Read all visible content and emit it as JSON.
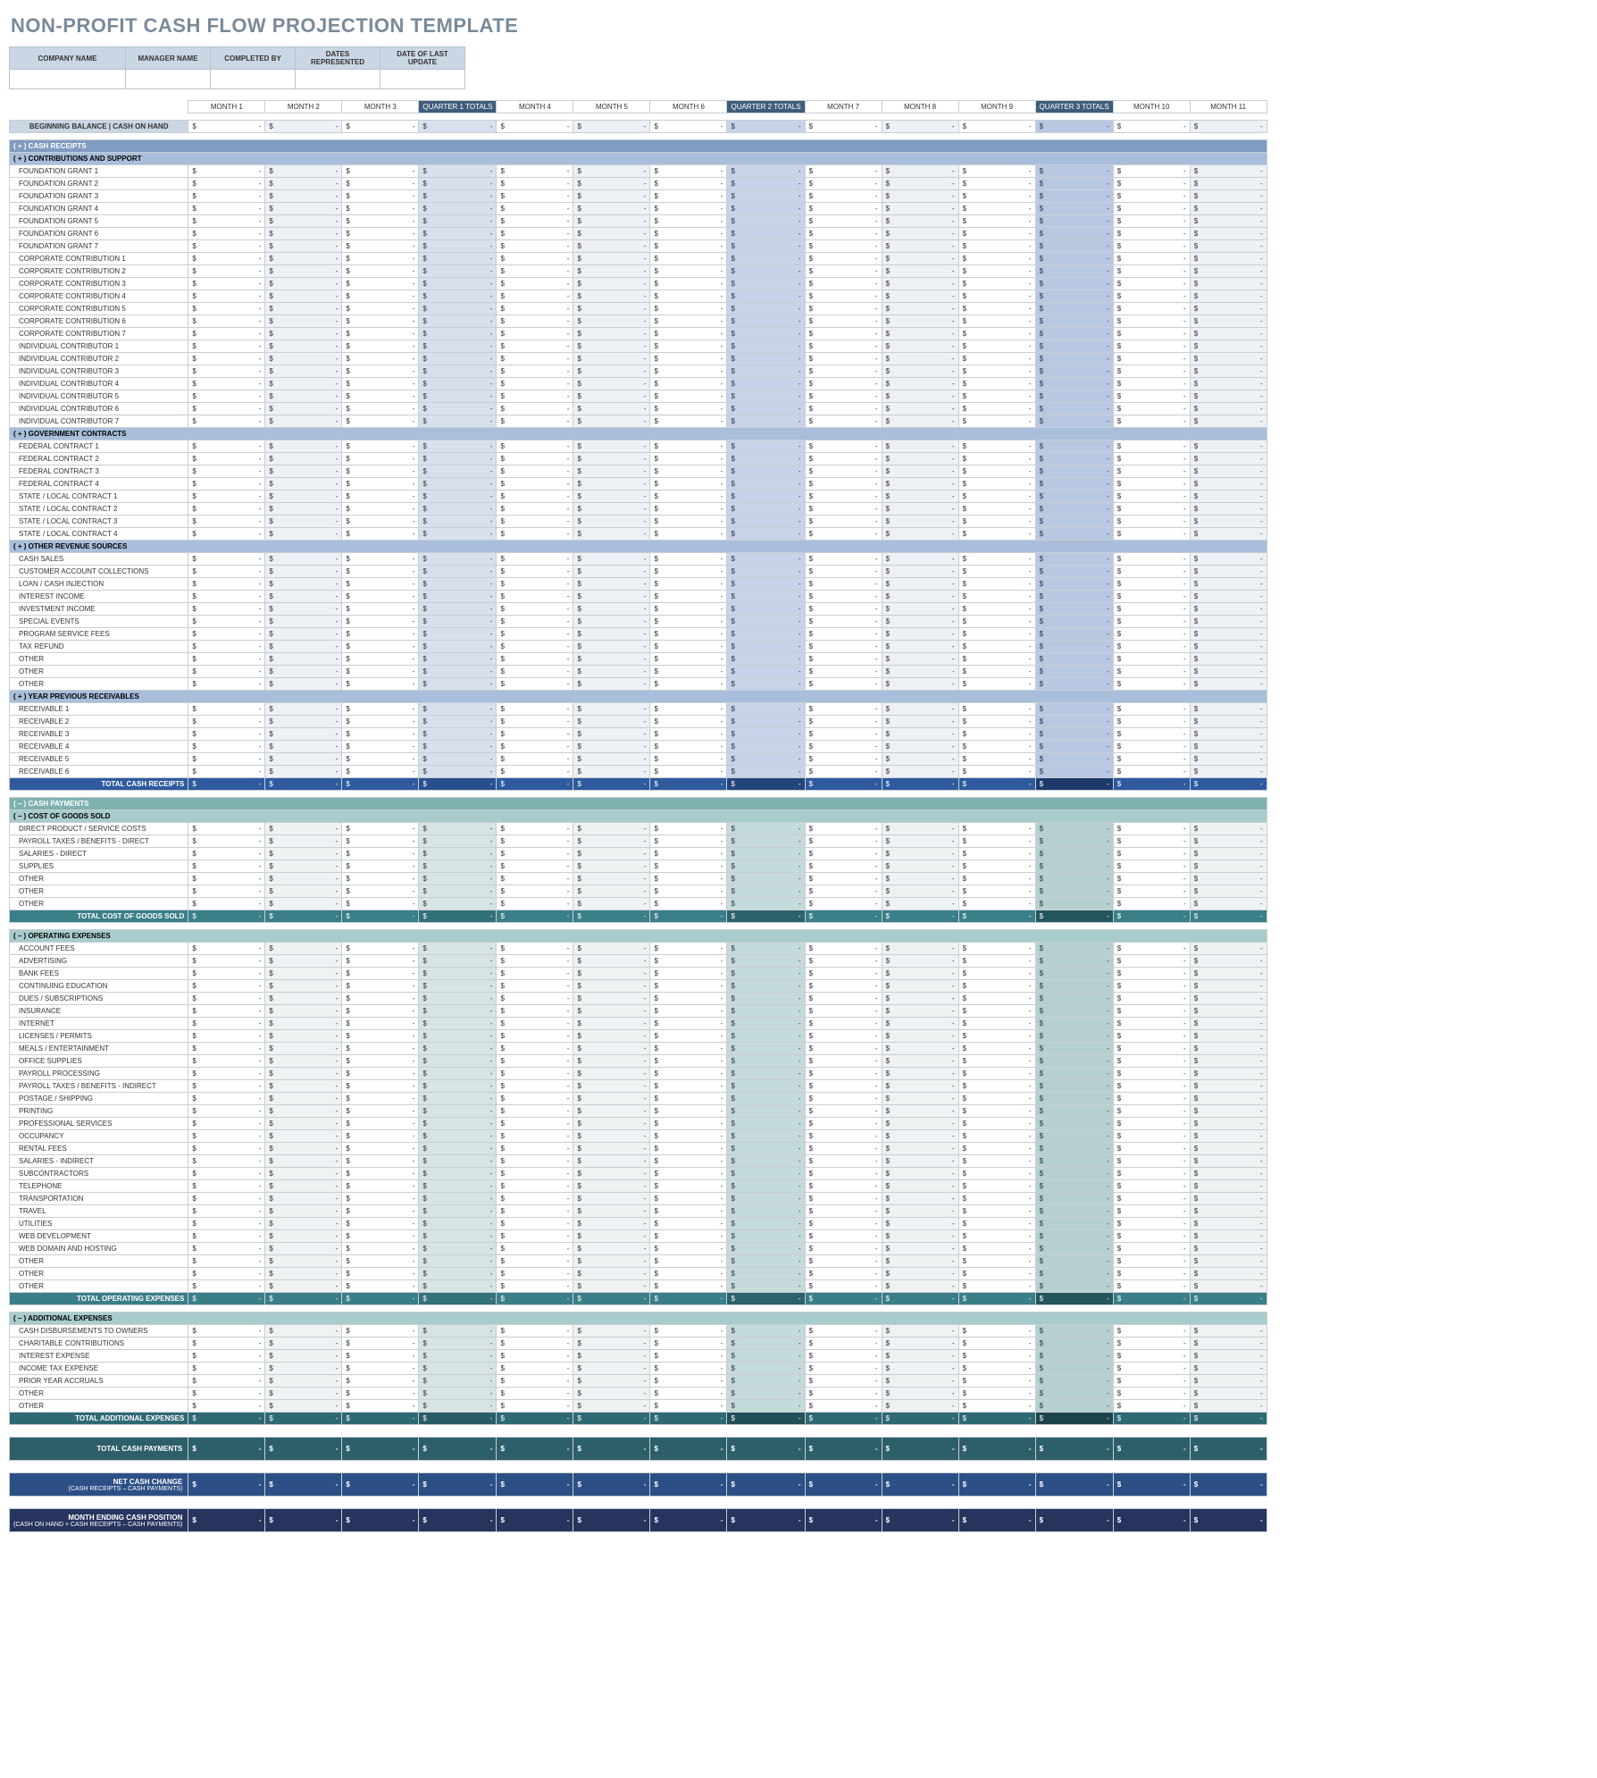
{
  "title": "NON-PROFIT CASH FLOW PROJECTION TEMPLATE",
  "meta_headers": [
    "COMPANY NAME",
    "MANAGER NAME",
    "COMPLETED BY",
    "DATES REPRESENTED",
    "DATE OF LAST UPDATE"
  ],
  "columns": [
    {
      "key": "m1",
      "label": "MONTH 1",
      "type": "m"
    },
    {
      "key": "m2",
      "label": "MONTH 2",
      "type": "m alt"
    },
    {
      "key": "m3",
      "label": "MONTH 3",
      "type": "m"
    },
    {
      "key": "q1",
      "label": "QUARTER 1 TOTALS",
      "type": "q1",
      "header": "q"
    },
    {
      "key": "m4",
      "label": "MONTH 4",
      "type": "m"
    },
    {
      "key": "m5",
      "label": "MONTH 5",
      "type": "m alt"
    },
    {
      "key": "m6",
      "label": "MONTH 6",
      "type": "m"
    },
    {
      "key": "q2",
      "label": "QUARTER 2 TOTALS",
      "type": "q2",
      "header": "q"
    },
    {
      "key": "m7",
      "label": "MONTH 7",
      "type": "m"
    },
    {
      "key": "m8",
      "label": "MONTH 8",
      "type": "m alt"
    },
    {
      "key": "m9",
      "label": "MONTH 9",
      "type": "m"
    },
    {
      "key": "q3",
      "label": "QUARTER 3 TOTALS",
      "type": "q3",
      "header": "q"
    },
    {
      "key": "m10",
      "label": "MONTH 10",
      "type": "m"
    },
    {
      "key": "m11",
      "label": "MONTH 11",
      "type": "m alt"
    }
  ],
  "dollar": "$",
  "dash": "-",
  "begin_label": "BEGINNING BALANCE | CASH ON HAND",
  "sections": {
    "receipts": {
      "header": "( + )  CASH RECEIPTS",
      "groups": [
        {
          "header": "( + )  CONTRIBUTIONS AND SUPPORT",
          "rows": [
            "FOUNDATION GRANT 1",
            "FOUNDATION GRANT 2",
            "FOUNDATION GRANT 3",
            "FOUNDATION GRANT 4",
            "FOUNDATION GRANT 5",
            "FOUNDATION GRANT 6",
            "FOUNDATION GRANT 7",
            "CORPORATE CONTRIBUTION 1",
            "CORPORATE CONTRIBUTION 2",
            "CORPORATE CONTRIBUTION 3",
            "CORPORATE CONTRIBUTION 4",
            "CORPORATE CONTRIBUTION 5",
            "CORPORATE CONTRIBUTION 6",
            "CORPORATE CONTRIBUTION 7",
            "INDIVIDUAL CONTRIBUTOR 1",
            "INDIVIDUAL CONTRIBUTOR 2",
            "INDIVIDUAL CONTRIBUTOR 3",
            "INDIVIDUAL CONTRIBUTOR 4",
            "INDIVIDUAL CONTRIBUTOR 5",
            "INDIVIDUAL CONTRIBUTOR 6",
            "INDIVIDUAL CONTRIBUTOR 7"
          ]
        },
        {
          "header": "( + )  GOVERNMENT CONTRACTS",
          "rows": [
            "FEDERAL CONTRACT 1",
            "FEDERAL CONTRACT 2",
            "FEDERAL CONTRACT 3",
            "FEDERAL CONTRACT 4",
            "STATE / LOCAL CONTRACT 1",
            "STATE / LOCAL CONTRACT 2",
            "STATE / LOCAL CONTRACT 3",
            "STATE / LOCAL CONTRACT 4"
          ]
        },
        {
          "header": "( + )  OTHER REVENUE SOURCES",
          "rows": [
            "CASH SALES",
            "CUSTOMER ACCOUNT COLLECTIONS",
            "LOAN / CASH INJECTION",
            "INTEREST INCOME",
            "INVESTMENT INCOME",
            "SPECIAL EVENTS",
            "PROGRAM SERVICE FEES",
            "TAX REFUND",
            "OTHER",
            "OTHER",
            "OTHER"
          ]
        },
        {
          "header": "( + )  YEAR PREVIOUS RECEIVABLES",
          "rows": [
            "RECEIVABLE 1",
            "RECEIVABLE 2",
            "RECEIVABLE 3",
            "RECEIVABLE 4",
            "RECEIVABLE 5",
            "RECEIVABLE 6"
          ]
        }
      ],
      "total_label": "TOTAL CASH RECEIPTS"
    },
    "payments_header": "( – )  CASH PAYMENTS",
    "cogs": {
      "header": "( – )  COST OF GOODS SOLD",
      "rows": [
        "DIRECT PRODUCT / SERVICE COSTS",
        "PAYROLL TAXES / BENEFITS - DIRECT",
        "SALARIES - DIRECT",
        "SUPPLIES",
        "OTHER",
        "OTHER",
        "OTHER"
      ],
      "total_label": "TOTAL COST OF GOODS SOLD"
    },
    "opex": {
      "header": "( – )  OPERATING EXPENSES",
      "rows": [
        "ACCOUNT FEES",
        "ADVERTISING",
        "BANK FEES",
        "CONTINUING EDUCATION",
        "DUES / SUBSCRIPTIONS",
        "INSURANCE",
        "INTERNET",
        "LICENSES / PERMITS",
        "MEALS / ENTERTAINMENT",
        "OFFICE SUPPLIES",
        "PAYROLL PROCESSING",
        "PAYROLL TAXES / BENEFITS - INDIRECT",
        "POSTAGE / SHIPPING",
        "PRINTING",
        "PROFESSIONAL SERVICES",
        "OCCUPANCY",
        "RENTAL FEES",
        "SALARIES - INDIRECT",
        "SUBCONTRACTORS",
        "TELEPHONE",
        "TRANSPORTATION",
        "TRAVEL",
        "UTILITIES",
        "WEB DEVELOPMENT",
        "WEB DOMAIN AND HOSTING",
        "OTHER",
        "OTHER",
        "OTHER"
      ],
      "total_label": "TOTAL OPERATING EXPENSES"
    },
    "addl": {
      "header": "( – )  ADDITIONAL EXPENSES",
      "rows": [
        "CASH DISBURSEMENTS TO OWNERS",
        "CHARITABLE CONTRIBUTIONS",
        "INTEREST EXPENSE",
        "INCOME TAX EXPENSE",
        "PRIOR YEAR ACCRUALS",
        "OTHER",
        "OTHER"
      ],
      "total_label": "TOTAL ADDITIONAL EXPENSES"
    }
  },
  "big_totals": {
    "payments": "TOTAL CASH PAYMENTS",
    "netchange": "NET CASH CHANGE",
    "netchange_sub": "(CASH RECEIPTS – CASH PAYMENTS)",
    "ending": "MONTH ENDING CASH POSITION",
    "ending_sub": "(CASH ON HAND + CASH RECEIPTS – CASH PAYMENTS)"
  }
}
